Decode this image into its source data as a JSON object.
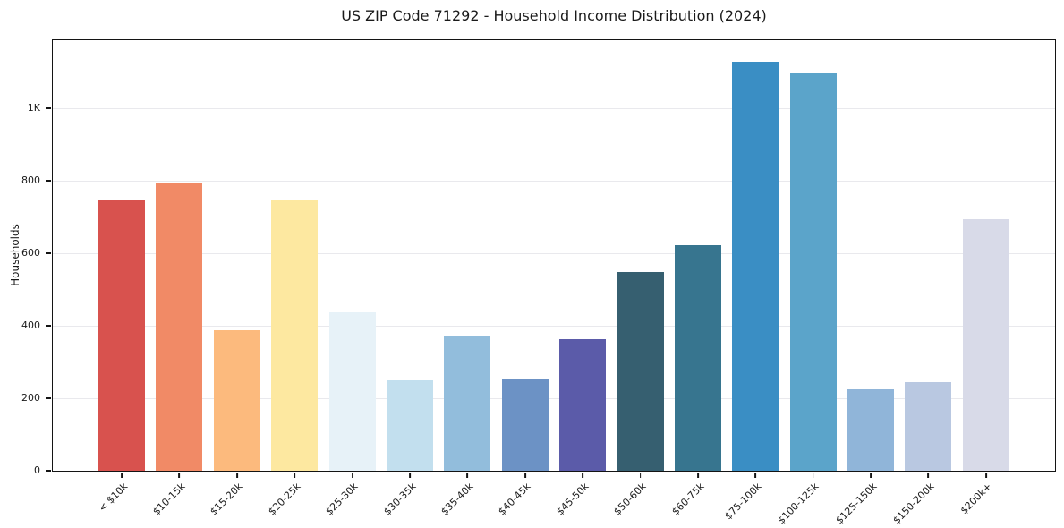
{
  "figure": {
    "background": "#ffffff",
    "text_color": "#1a1a1a",
    "grid_color": "#e9e9ed",
    "spine_color": "#141414"
  },
  "chart_data": {
    "type": "bar",
    "title": "US ZIP Code 71292 - Household Income Distribution (2024)",
    "xlabel": "",
    "ylabel": "Households",
    "categories": [
      "< $10k",
      "$10-15k",
      "$15-20k",
      "$20-25k",
      "$25-30k",
      "$30-35k",
      "$35-40k",
      "$40-45k",
      "$45-50k",
      "$50-60k",
      "$60-75k",
      "$75-100k",
      "$100-125k",
      "$125-150k",
      "$150-200k",
      "$200k+"
    ],
    "values": [
      748,
      794,
      389,
      745,
      438,
      250,
      374,
      252,
      364,
      549,
      622,
      1128,
      1096,
      224,
      244,
      695
    ],
    "bar_colors": [
      "#d8524e",
      "#f18a66",
      "#fcba7d",
      "#fde8a0",
      "#e7f2f8",
      "#c2dfee",
      "#92bddc",
      "#6c92c5",
      "#5b5ba9",
      "#365f70",
      "#37758f",
      "#3a8ec4",
      "#5ba4ca",
      "#90b5d9",
      "#b9c8e1",
      "#d8dae8"
    ],
    "ylim": [
      0,
      1188
    ],
    "ytick_values": [
      0,
      200,
      400,
      600,
      800,
      1000
    ],
    "ytick_labels": [
      "0",
      "200",
      "400",
      "600",
      "800",
      "1K"
    ],
    "grid": "horizontal",
    "legend_position": "none",
    "xtick_rotation_deg": 45
  }
}
